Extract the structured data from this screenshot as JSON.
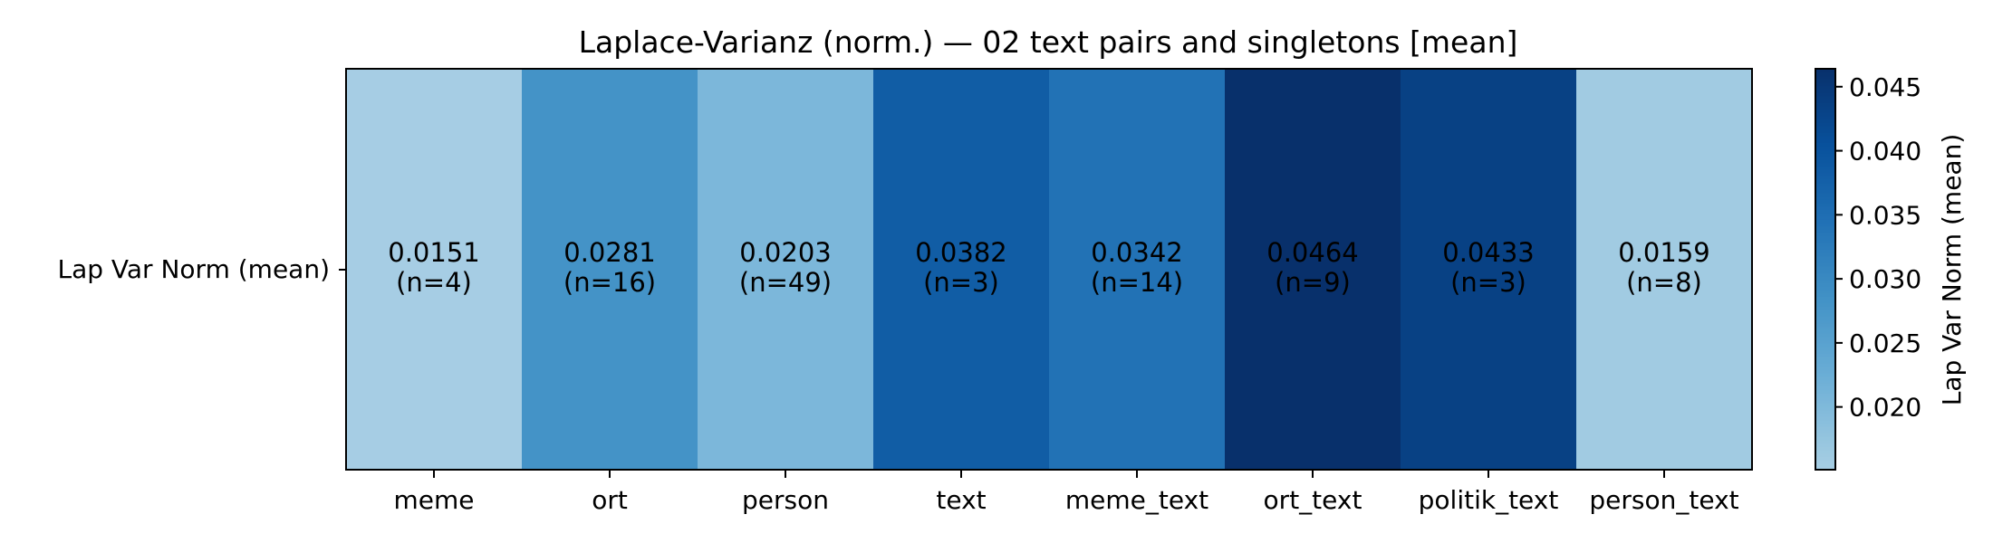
{
  "chart_data": {
    "type": "heatmap",
    "title": "Laplace-Varianz (norm.) — 02 text pairs and singletons [mean]",
    "row_label": "Lap Var Norm (mean)",
    "categories": [
      "meme",
      "ort",
      "person",
      "text",
      "meme_text",
      "ort_text",
      "politik_text",
      "person_text"
    ],
    "values": [
      0.0151,
      0.0281,
      0.0203,
      0.0382,
      0.0342,
      0.0464,
      0.0433,
      0.0159
    ],
    "cell_labels": [
      "0.0151",
      "0.0281",
      "0.0203",
      "0.0382",
      "0.0342",
      "0.0464",
      "0.0433",
      "0.0159"
    ],
    "counts": [
      "(n=4)",
      "(n=16)",
      "(n=49)",
      "(n=3)",
      "(n=14)",
      "(n=9)",
      "(n=3)",
      "(n=8)"
    ],
    "colormap": "Blues",
    "colorbar": {
      "label": "Lap Var Norm (mean)",
      "vmin": 0.0151,
      "vmax": 0.0464,
      "ticks": [
        0.02,
        0.025,
        0.03,
        0.035,
        0.04,
        0.045
      ],
      "tick_labels": [
        "0.020",
        "0.025",
        "0.030",
        "0.035",
        "0.040",
        "0.045"
      ]
    }
  }
}
